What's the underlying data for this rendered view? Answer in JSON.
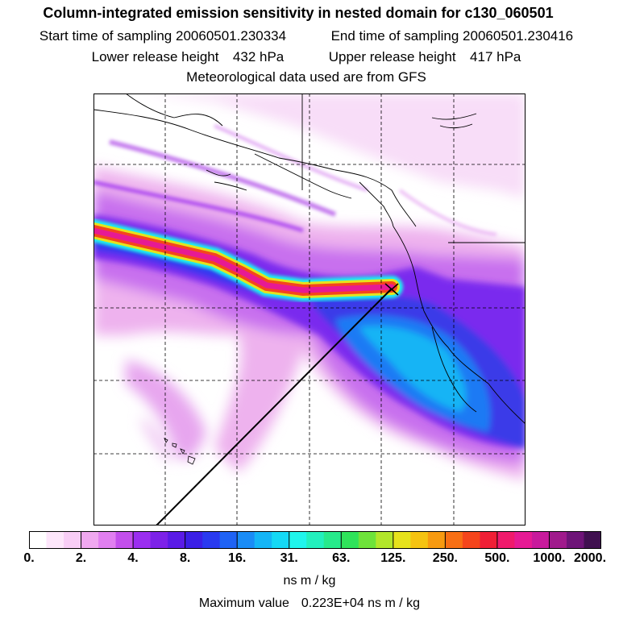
{
  "title": "Column-integrated emission sensitivity in nested domain for c130_060501",
  "sampling": {
    "start_label": "Start time of sampling",
    "start_value": "20060501.230334",
    "end_label": "End time of sampling",
    "end_value": "20060501.230416"
  },
  "release": {
    "lower_label": "Lower release height",
    "lower_value": "432 hPa",
    "upper_label": "Upper release height",
    "upper_value": "417 hPa"
  },
  "met_note": "Meteorological data used are from GFS",
  "colorbar": {
    "labels": [
      "0.",
      "2.",
      "4.",
      "8.",
      "16.",
      "31.",
      "63.",
      "125.",
      "250.",
      "500.",
      "1000.",
      "2000."
    ],
    "colors": [
      "#ffffff",
      "#fde6fb",
      "#f8cdf6",
      "#f0a8f0",
      "#e17ff0",
      "#c34fec",
      "#9b2ef0",
      "#7d22e8",
      "#5a1be6",
      "#3b1fe6",
      "#2a3af0",
      "#1f63f5",
      "#1a8cf6",
      "#14b5f6",
      "#14d9f5",
      "#1ff5ec",
      "#22f0bd",
      "#27ea8b",
      "#2fe35a",
      "#6ee33a",
      "#b2e62a",
      "#e6e21c",
      "#f5c311",
      "#f79a10",
      "#f86f14",
      "#f5451c",
      "#f01f36",
      "#f01a6c",
      "#e61a94",
      "#c81a9c",
      "#a01a8c",
      "#6e1478",
      "#401050"
    ],
    "units": "ns m / kg"
  },
  "max_label": "Maximum value",
  "max_value": "0.223E+04 ns m / kg"
}
